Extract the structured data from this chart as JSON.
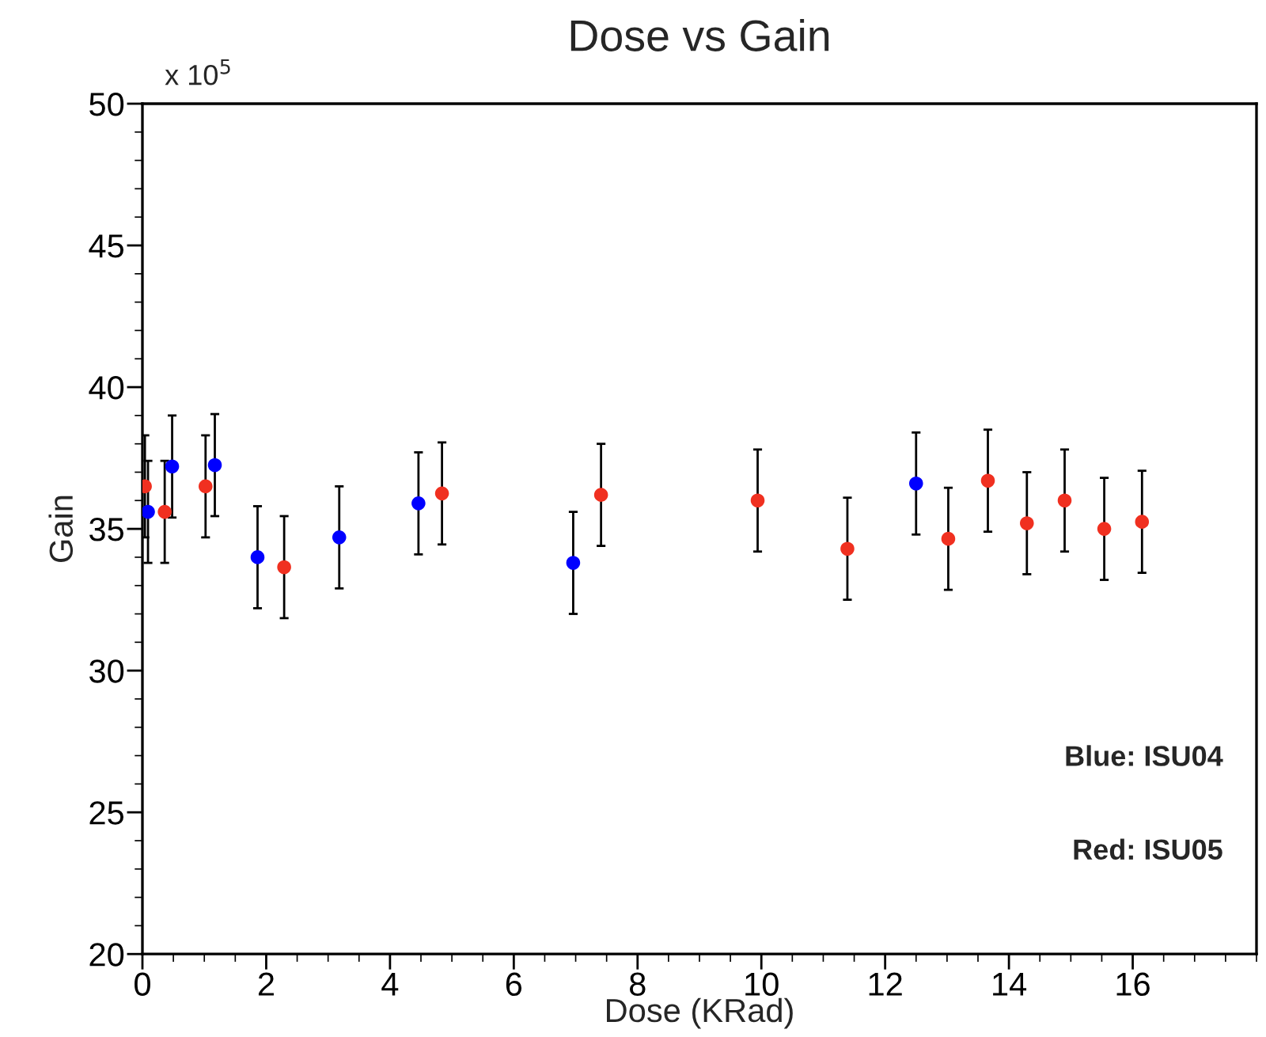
{
  "chart_data": {
    "type": "scatter",
    "title": "Dose vs Gain",
    "xlabel": "Dose (KRad)",
    "ylabel": "Gain",
    "xlim": [
      0,
      18
    ],
    "xticks": [
      0,
      2,
      4,
      6,
      8,
      10,
      12,
      14,
      16
    ],
    "ylim": [
      20,
      50
    ],
    "yticks": [
      20,
      25,
      30,
      35,
      40,
      45,
      50
    ],
    "grid": false,
    "marker": "circle",
    "legend": false,
    "annotations": [
      "x 10$^{5}$",
      "Blue: ISU04",
      "Red: ISU05"
    ],
    "series": [
      {
        "color": "#0000ff",
        "x": [
          0.09,
          0.48,
          1.17,
          1.86,
          3.18,
          4.46,
          6.96,
          12.5
        ],
        "values": [
          35.6,
          37.2,
          37.25,
          34.0,
          34.7,
          35.9,
          33.8,
          36.6
        ],
        "errors": [
          1.8,
          1.8,
          1.8,
          1.8,
          1.8,
          1.8,
          1.8,
          1.8
        ]
      },
      {
        "color": "#f03020",
        "x": [
          0.04,
          0.36,
          1.02,
          2.29,
          4.84,
          7.41,
          9.94,
          11.39,
          13.02,
          13.66,
          14.29,
          14.9,
          15.54,
          16.15
        ],
        "values": [
          36.5,
          35.6,
          36.5,
          33.65,
          36.25,
          36.2,
          36.0,
          34.3,
          34.65,
          36.7,
          35.2,
          36.0,
          35.0,
          35.25
        ],
        "errors": [
          1.8,
          1.8,
          1.8,
          1.8,
          1.8,
          1.8,
          1.8,
          1.8,
          1.8,
          1.8,
          1.8,
          1.8,
          1.8,
          1.8
        ]
      }
    ]
  }
}
